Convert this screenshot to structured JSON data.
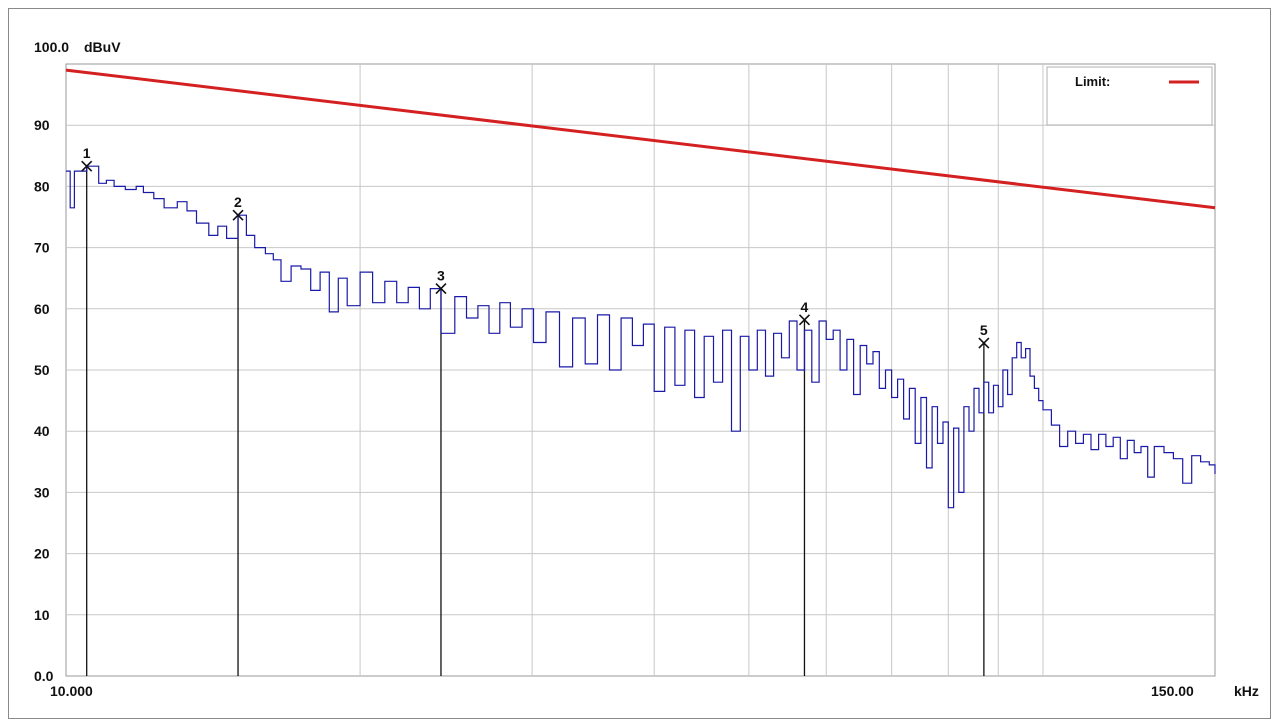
{
  "chart_data": {
    "type": "line",
    "title": "",
    "xlabel": "",
    "x_unit": "kHz",
    "x_scale": "log",
    "xlim": [
      10.0,
      150.0
    ],
    "x_tick_labels": [
      "10.000",
      "150.00"
    ],
    "x_gridlines_kHz": [
      20,
      30,
      40,
      50,
      60,
      70,
      80,
      90,
      100
    ],
    "ylabel": "dBuV",
    "ylim": [
      0,
      100
    ],
    "y_tick_labels": [
      "100.0",
      "90",
      "80",
      "70",
      "60",
      "50",
      "40",
      "30",
      "20",
      "10",
      "0.0"
    ],
    "y_ticks": [
      100,
      90,
      80,
      70,
      60,
      50,
      40,
      30,
      20,
      10,
      0
    ],
    "grid": true,
    "legend": {
      "position": "top-right",
      "entries": [
        {
          "label": "Limit:",
          "color": "#d42020"
        }
      ]
    },
    "limit_line": {
      "name": "Limit:",
      "color": "#d42020",
      "x": [
        10.0,
        150.0
      ],
      "y": [
        99.0,
        76.5
      ]
    },
    "measurement": {
      "color": "#1a1aa8",
      "x": [
        10.0,
        10.1,
        10.2,
        10.35,
        10.5,
        10.8,
        11.0,
        11.2,
        11.5,
        11.8,
        12.0,
        12.3,
        12.6,
        13.0,
        13.3,
        13.6,
        14.0,
        14.3,
        14.6,
        15.0,
        15.3,
        15.6,
        16.0,
        16.3,
        16.6,
        17.0,
        17.4,
        17.8,
        18.2,
        18.6,
        19.0,
        19.4,
        20.0,
        20.6,
        21.2,
        21.8,
        22.4,
        23.0,
        23.6,
        24.2,
        25.0,
        25.7,
        26.4,
        27.1,
        27.8,
        28.5,
        29.3,
        30.1,
        31.0,
        32.0,
        33.0,
        34.0,
        35.0,
        36.0,
        37.0,
        38.0,
        39.0,
        40.0,
        41.0,
        42.0,
        43.0,
        44.0,
        45.0,
        46.0,
        47.0,
        48.0,
        49.0,
        50.0,
        51.0,
        52.0,
        53.0,
        54.0,
        55.0,
        56.0,
        57.0,
        58.0,
        59.0,
        60.0,
        61.0,
        62.0,
        63.0,
        64.0,
        65.0,
        66.0,
        67.0,
        68.0,
        69.0,
        70.0,
        71.0,
        72.0,
        73.0,
        74.0,
        75.0,
        76.0,
        77.0,
        78.0,
        79.0,
        80.0,
        81.0,
        82.0,
        83.0,
        84.0,
        85.0,
        86.0,
        87.0,
        88.0,
        89.0,
        90.0,
        91.0,
        92.0,
        93.0,
        94.0,
        95.0,
        96.0,
        97.0,
        98.0,
        99.0,
        100.0,
        102.0,
        104.0,
        106.0,
        108.0,
        110.0,
        112.0,
        114.0,
        116.0,
        118.0,
        120.0,
        122.0,
        124.0,
        126.0,
        128.0,
        130.0,
        133.0,
        136.0,
        139.0,
        142.0,
        145.0,
        148.0,
        150.0
      ],
      "y": [
        82.5,
        76.5,
        82.5,
        82.5,
        83.3,
        80.5,
        81.0,
        80.0,
        79.5,
        80.0,
        79.0,
        78.0,
        76.5,
        77.5,
        76.0,
        74.0,
        72.0,
        73.5,
        71.5,
        75.3,
        72.0,
        70.0,
        69.0,
        68.0,
        64.5,
        67.0,
        66.5,
        63.0,
        66.0,
        59.5,
        65.0,
        60.5,
        66.0,
        61.0,
        64.5,
        61.0,
        63.5,
        60.0,
        63.3,
        56.0,
        62.0,
        58.5,
        60.5,
        56.0,
        61.0,
        57.0,
        60.0,
        54.5,
        59.5,
        50.5,
        58.5,
        51.0,
        59.0,
        50.0,
        58.5,
        54.0,
        57.5,
        46.5,
        57.0,
        47.5,
        56.5,
        45.5,
        55.5,
        48.0,
        56.5,
        40.0,
        55.5,
        50.0,
        56.5,
        49.0,
        56.0,
        52.0,
        58.0,
        50.0,
        56.5,
        48.0,
        58.0,
        55.0,
        56.5,
        50.0,
        55.0,
        46.0,
        54.0,
        51.0,
        53.0,
        47.0,
        50.0,
        45.5,
        48.5,
        42.0,
        47.0,
        38.0,
        45.5,
        34.0,
        44.0,
        38.0,
        41.5,
        27.5,
        40.5,
        30.0,
        44.0,
        40.0,
        47.0,
        43.0,
        48.0,
        43.0,
        47.5,
        44.0,
        50.0,
        46.0,
        52.0,
        54.5,
        52.0,
        53.5,
        49.0,
        47.0,
        45.0,
        43.5,
        41.0,
        37.5,
        40.0,
        38.0,
        39.5,
        37.0,
        39.5,
        37.5,
        39.0,
        35.5,
        38.5,
        36.5,
        37.5,
        32.5,
        37.5,
        36.5,
        35.5,
        31.5,
        36.0,
        35.0,
        34.5,
        33.0
      ]
    },
    "markers": [
      {
        "label": "1",
        "x": 10.5,
        "y": 83.3
      },
      {
        "label": "2",
        "x": 15.0,
        "y": 75.3
      },
      {
        "label": "3",
        "x": 24.2,
        "y": 63.3
      },
      {
        "label": "4",
        "x": 57.0,
        "y": 58.2
      },
      {
        "label": "5",
        "x": 87.0,
        "y": 54.4
      }
    ]
  }
}
